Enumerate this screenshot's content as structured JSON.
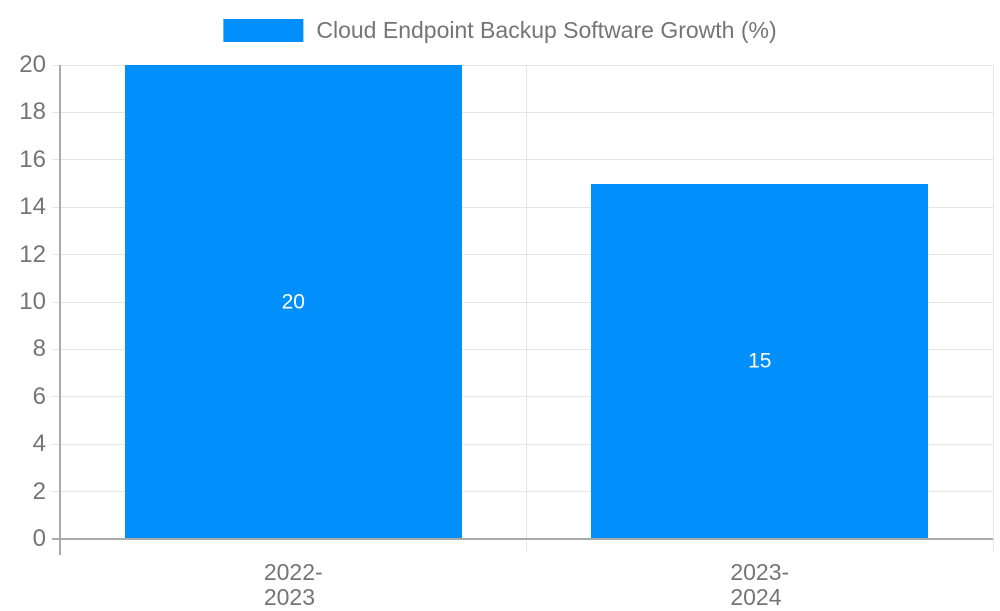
{
  "legend": {
    "label": "Cloud Endpoint Backup Software Growth (%)"
  },
  "chart_data": {
    "type": "bar",
    "title": "Cloud Endpoint Backup Software Growth (%)",
    "categories": [
      "2022-2023",
      "2023-2024"
    ],
    "values": [
      20,
      15
    ],
    "bar_labels": [
      "20",
      "15"
    ],
    "xlabel": "",
    "ylabel": "",
    "ylim": [
      0,
      20
    ],
    "ytick_step": 2,
    "ytick_labels": [
      "0",
      "2",
      "4",
      "6",
      "8",
      "10",
      "12",
      "14",
      "16",
      "18",
      "20"
    ],
    "grid": true,
    "legend_position": "top-center",
    "colors": {
      "bar": "#008ffb",
      "bar_label": "#ffffff",
      "text": "#757575",
      "grid": "#e6e6e6",
      "axis": "#aaaaaa"
    }
  }
}
